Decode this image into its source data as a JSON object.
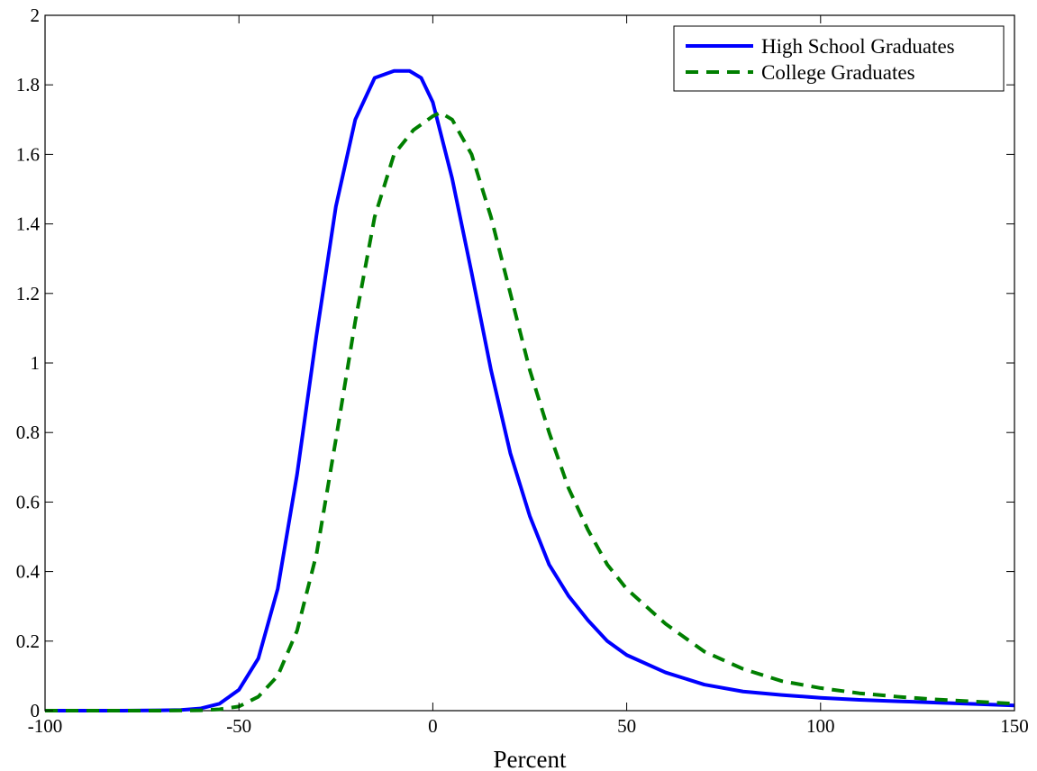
{
  "chart_data": {
    "type": "line",
    "title": "",
    "xlabel": "Percent",
    "ylabel": "",
    "xlim": [
      -100,
      150
    ],
    "ylim": [
      0,
      2
    ],
    "x_ticks": [
      -100,
      -50,
      0,
      50,
      100,
      150
    ],
    "y_ticks": [
      0,
      0.2,
      0.4,
      0.6,
      0.8,
      1,
      1.2,
      1.4,
      1.6,
      1.8,
      2
    ],
    "x_tick_labels": [
      "-100",
      "-50",
      "0",
      "50",
      "100",
      "150"
    ],
    "y_tick_labels": [
      "0",
      "0.2",
      "0.4",
      "0.6",
      "0.8",
      "1",
      "1.2",
      "1.4",
      "1.6",
      "1.8",
      "2"
    ],
    "grid": false,
    "legend": {
      "placement": "top-right"
    },
    "series": [
      {
        "name": "High School Graduates",
        "color": "#0000ff",
        "style": "solid",
        "x": [
          -100,
          -80,
          -70,
          -65,
          -60,
          -55,
          -50,
          -45,
          -40,
          -35,
          -30,
          -25,
          -20,
          -15,
          -10,
          -6,
          -3,
          0,
          5,
          10,
          15,
          20,
          25,
          30,
          35,
          40,
          45,
          50,
          60,
          70,
          80,
          90,
          100,
          110,
          120,
          130,
          140,
          150
        ],
        "y": [
          0,
          0,
          0.001,
          0.002,
          0.006,
          0.02,
          0.06,
          0.15,
          0.35,
          0.68,
          1.08,
          1.45,
          1.7,
          1.82,
          1.84,
          1.84,
          1.82,
          1.75,
          1.53,
          1.26,
          0.98,
          0.74,
          0.56,
          0.42,
          0.33,
          0.26,
          0.2,
          0.16,
          0.11,
          0.075,
          0.055,
          0.045,
          0.037,
          0.031,
          0.027,
          0.023,
          0.019,
          0.015
        ]
      },
      {
        "name": "College Graduates",
        "color": "#007f00",
        "style": "dashed",
        "x": [
          -100,
          -80,
          -70,
          -60,
          -55,
          -50,
          -45,
          -40,
          -35,
          -30,
          -25,
          -20,
          -15,
          -10,
          -5,
          0,
          2,
          5,
          10,
          15,
          20,
          25,
          30,
          35,
          40,
          45,
          50,
          60,
          70,
          80,
          90,
          100,
          110,
          120,
          130,
          140,
          150
        ],
        "y": [
          0,
          0,
          0,
          0.001,
          0.004,
          0.012,
          0.04,
          0.1,
          0.23,
          0.45,
          0.78,
          1.12,
          1.42,
          1.6,
          1.67,
          1.71,
          1.72,
          1.7,
          1.6,
          1.42,
          1.2,
          0.98,
          0.8,
          0.64,
          0.52,
          0.42,
          0.35,
          0.25,
          0.17,
          0.12,
          0.085,
          0.065,
          0.05,
          0.04,
          0.032,
          0.026,
          0.02
        ]
      }
    ]
  }
}
